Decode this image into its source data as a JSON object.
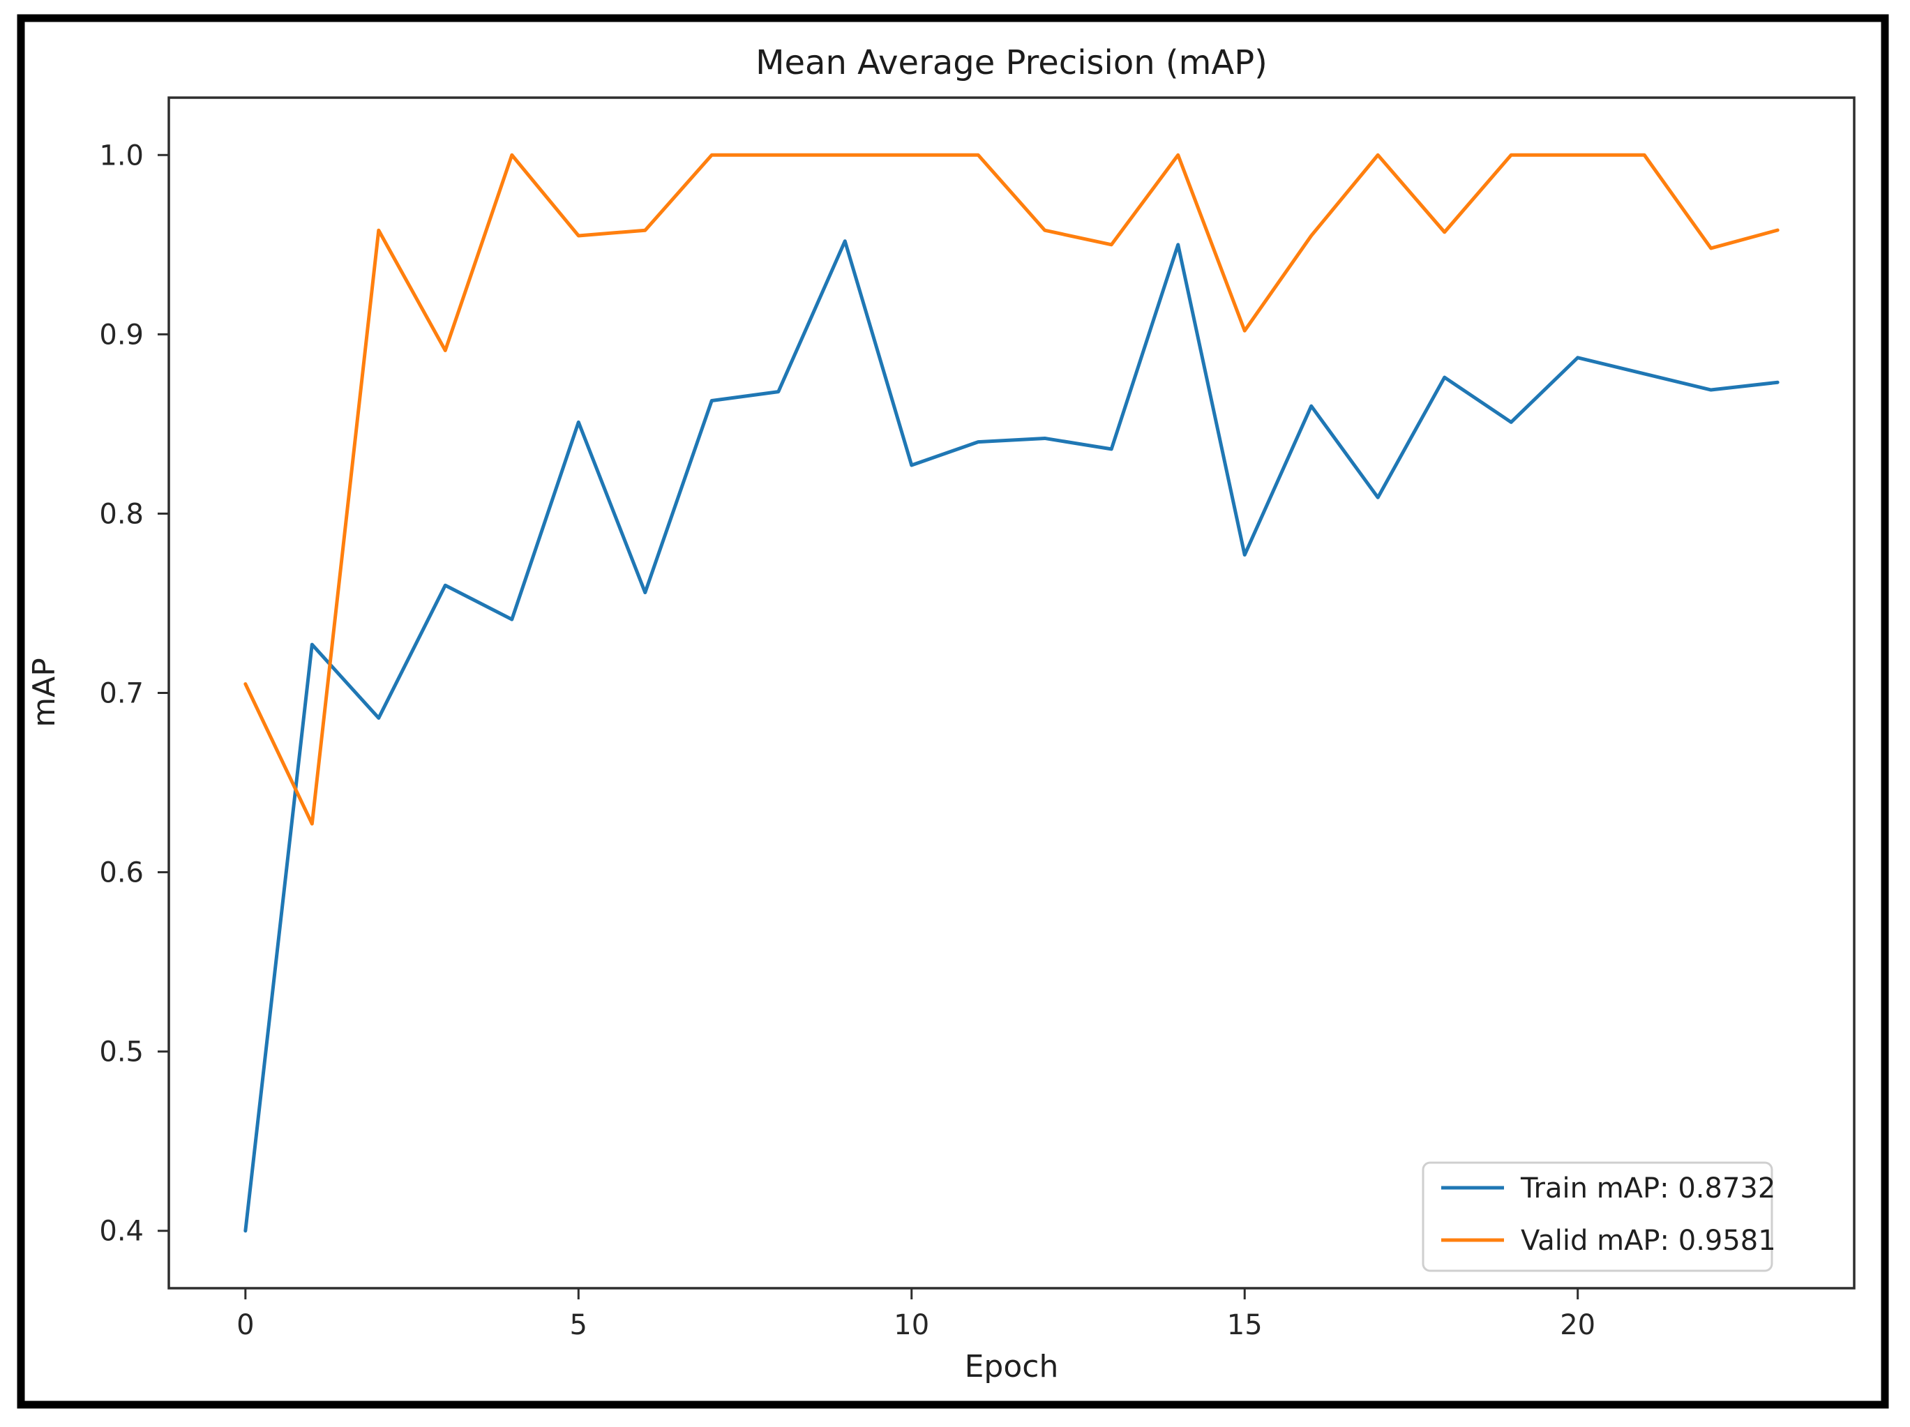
{
  "figure": {
    "border_color": "#000000",
    "background_color": "#ffffff",
    "spine_color": "#2e2e2e"
  },
  "chart_data": {
    "type": "line",
    "title": "Mean Average Precision (mAP)",
    "xlabel": "Epoch",
    "ylabel": "mAP",
    "grid": false,
    "legend_position": "lower right",
    "xlim": [
      -1.15,
      24.15
    ],
    "ylim": [
      0.368,
      1.032
    ],
    "x_ticks": [
      0,
      5,
      10,
      15,
      20
    ],
    "y_ticks": [
      0.4,
      0.5,
      0.6,
      0.7,
      0.8,
      0.9,
      1.0
    ],
    "x": [
      0,
      1,
      2,
      3,
      4,
      5,
      6,
      7,
      8,
      9,
      10,
      11,
      12,
      13,
      14,
      15,
      16,
      17,
      18,
      19,
      20,
      21,
      22,
      23
    ],
    "series": [
      {
        "name": "Train mAP",
        "label": "Train mAP: 0.8732",
        "color": "#1f77b4",
        "final_value": 0.8732,
        "values": [
          0.4,
          0.727,
          0.686,
          0.76,
          0.741,
          0.851,
          0.756,
          0.863,
          0.868,
          0.952,
          0.827,
          0.84,
          0.842,
          0.836,
          0.95,
          0.777,
          0.86,
          0.809,
          0.876,
          0.851,
          0.887,
          0.878,
          0.869,
          0.8732
        ]
      },
      {
        "name": "Valid mAP",
        "label": "Valid mAP: 0.9581",
        "color": "#ff7f0e",
        "final_value": 0.9581,
        "values": [
          0.705,
          0.627,
          0.958,
          0.891,
          1.0,
          0.955,
          0.958,
          1.0,
          1.0,
          1.0,
          1.0,
          1.0,
          0.958,
          0.95,
          1.0,
          0.902,
          0.955,
          1.0,
          0.957,
          1.0,
          1.0,
          1.0,
          0.948,
          0.9581
        ]
      }
    ]
  }
}
